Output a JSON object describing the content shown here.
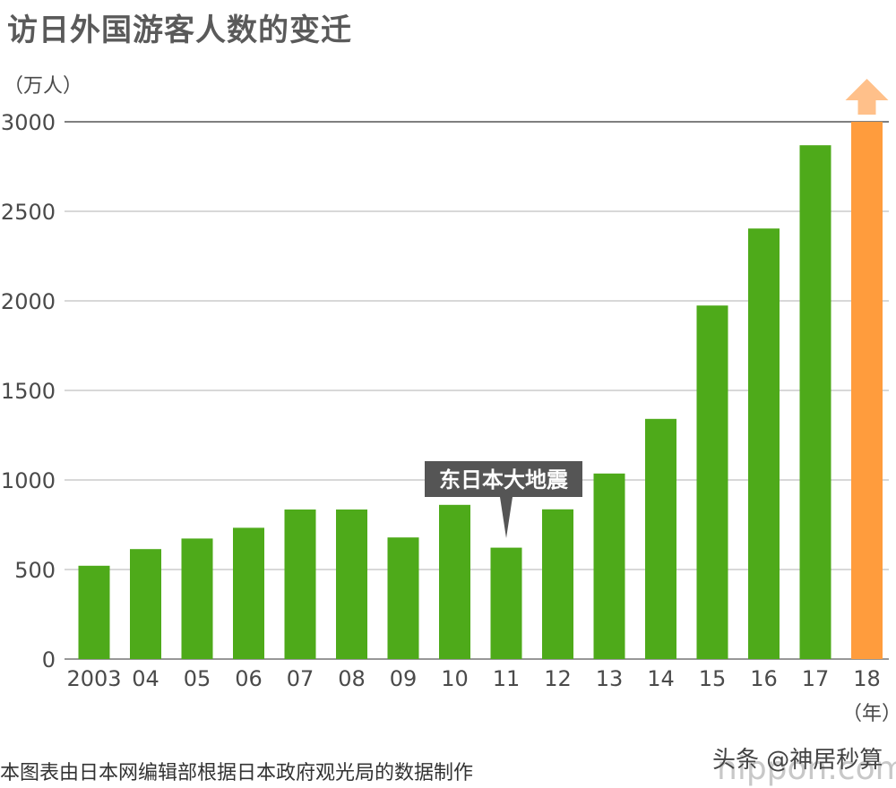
{
  "title": "访日外国游客人数的变迁",
  "unit_label": "（万人）",
  "source_note": "本图表由日本网编辑部根据日本政府观光局的数据制作",
  "watermark": "头条 @神居秒算",
  "logo_text": "nippon.com",
  "colors": {
    "bar": "#4eaa1a",
    "highlight": "#ff9c3d",
    "arrow": "#ffc08a",
    "grid": "#cccccc",
    "annotation_bg": "#555555"
  },
  "chart_data": {
    "type": "bar",
    "title": "访日外国游客人数的变迁",
    "ylabel": "（万人）",
    "xlabel": "（年）",
    "categories": [
      "2003",
      "04",
      "05",
      "06",
      "07",
      "08",
      "09",
      "10",
      "11",
      "12",
      "13",
      "14",
      "15",
      "16",
      "17",
      "18"
    ],
    "values": [
      521,
      614,
      673,
      733,
      835,
      835,
      679,
      861,
      622,
      836,
      1036,
      1341,
      1974,
      2404,
      2869,
      3000
    ],
    "highlight_index": 15,
    "highlight_arrow": true,
    "ylim": [
      0,
      3000
    ],
    "yticks": [
      0,
      500,
      1000,
      1500,
      2000,
      2500,
      3000
    ],
    "grid": true,
    "annotation": {
      "category": "11",
      "text": "东日本大地震"
    }
  }
}
